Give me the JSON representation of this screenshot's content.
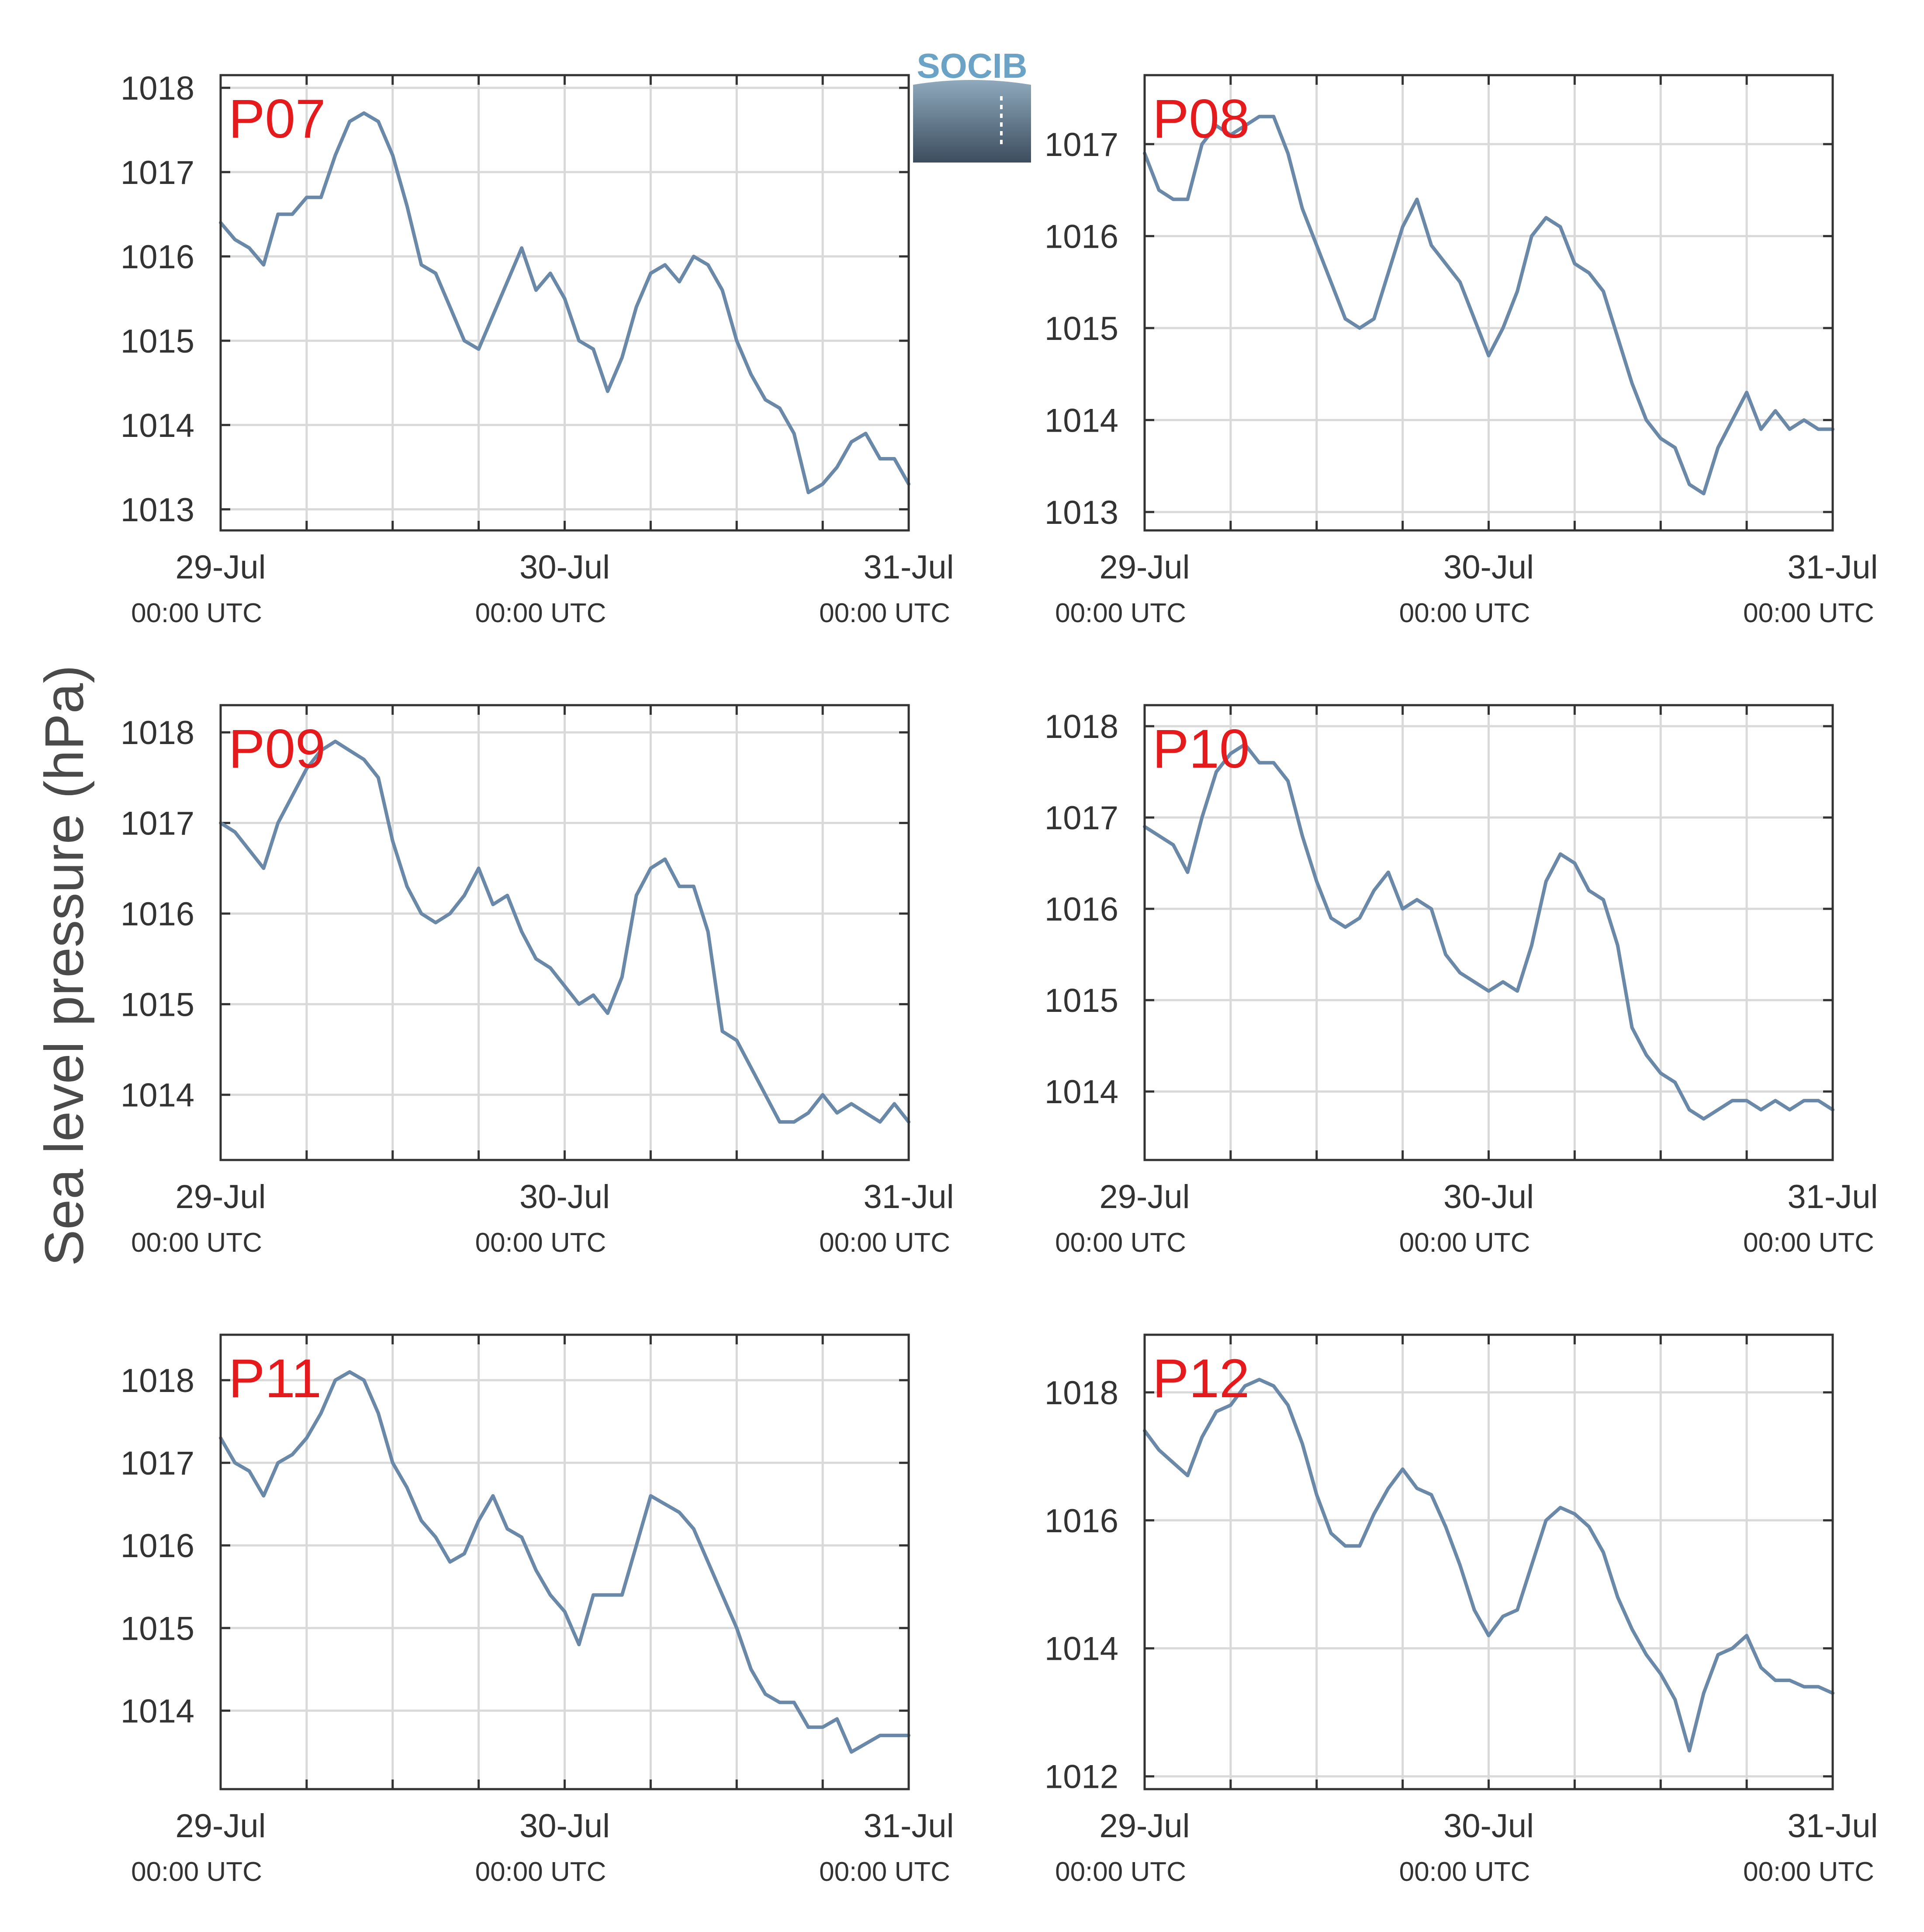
{
  "y_axis_title": "Sea level pressure (hPa)",
  "logo": {
    "text": "SOCIB",
    "name": "socib-logo"
  },
  "colors": {
    "series": "#6a88a8",
    "panel_label": "#e41a1c",
    "grid": "#d9d9d9",
    "axis": "#333333"
  },
  "x_ticks": [
    {
      "date": "29-Jul",
      "time": "00:00 UTC"
    },
    {
      "date": "30-Jul",
      "time": "00:00 UTC"
    },
    {
      "date": "31-Jul",
      "time": "00:00 UTC"
    }
  ],
  "chart_data": [
    {
      "type": "line",
      "panel_label": "P07",
      "xlim": [
        "2022-07-29T00:00",
        "2022-07-31T00:00"
      ],
      "ylim": [
        1012.75,
        1018.15
      ],
      "y_ticks": [
        1013,
        1014,
        1015,
        1016,
        1017,
        1018
      ],
      "series": [
        {
          "x_hours": [
            0,
            1,
            2,
            3,
            4,
            5,
            6,
            7,
            8,
            9,
            10,
            11,
            12,
            13,
            14,
            15,
            16,
            17,
            18,
            19,
            20,
            21,
            22,
            23,
            24,
            25,
            26,
            27,
            28,
            29,
            30,
            31,
            32,
            33,
            34,
            35,
            36,
            37,
            38,
            39,
            40,
            41,
            42,
            43,
            44,
            45,
            46,
            47,
            48
          ],
          "values": [
            1016.4,
            1016.2,
            1016.1,
            1015.9,
            1016.5,
            1016.5,
            1016.7,
            1016.7,
            1017.2,
            1017.6,
            1017.7,
            1017.6,
            1017.2,
            1016.6,
            1015.9,
            1015.8,
            1015.4,
            1015.0,
            1014.9,
            1015.3,
            1015.7,
            1016.1,
            1015.6,
            1015.8,
            1015.5,
            1015.0,
            1014.9,
            1014.4,
            1014.8,
            1015.4,
            1015.8,
            1015.9,
            1015.7,
            1016.0,
            1015.9,
            1015.6,
            1015.0,
            1014.6,
            1014.3,
            1014.2,
            1013.9,
            1013.2,
            1013.3,
            1013.5,
            1013.8,
            1013.9,
            1013.6,
            1013.6,
            1013.3
          ]
        }
      ]
    },
    {
      "type": "line",
      "panel_label": "P08",
      "xlim": [
        "2022-07-29T00:00",
        "2022-07-31T00:00"
      ],
      "ylim": [
        1012.8,
        1017.75
      ],
      "y_ticks": [
        1013,
        1014,
        1015,
        1016,
        1017
      ],
      "series": [
        {
          "x_hours": [
            0,
            1,
            2,
            3,
            4,
            5,
            6,
            7,
            8,
            9,
            10,
            11,
            12,
            13,
            14,
            15,
            16,
            17,
            18,
            19,
            20,
            21,
            22,
            23,
            24,
            25,
            26,
            27,
            28,
            29,
            30,
            31,
            32,
            33,
            34,
            35,
            36,
            37,
            38,
            39,
            40,
            41,
            42,
            43,
            44,
            45,
            46,
            47,
            48
          ],
          "values": [
            1016.9,
            1016.5,
            1016.4,
            1016.4,
            1017.0,
            1017.2,
            1017.1,
            1017.2,
            1017.3,
            1017.3,
            1016.9,
            1016.3,
            1015.9,
            1015.5,
            1015.1,
            1015.0,
            1015.1,
            1015.6,
            1016.1,
            1016.4,
            1015.9,
            1015.7,
            1015.5,
            1015.1,
            1014.7,
            1015.0,
            1015.4,
            1016.0,
            1016.2,
            1016.1,
            1015.7,
            1015.6,
            1015.4,
            1014.9,
            1014.4,
            1014.0,
            1013.8,
            1013.7,
            1013.3,
            1013.2,
            1013.7,
            1014.0,
            1014.3,
            1013.9,
            1014.1,
            1013.9,
            1014.0,
            1013.9,
            1013.9
          ]
        }
      ]
    },
    {
      "type": "line",
      "panel_label": "P09",
      "xlim": [
        "2022-07-29T00:00",
        "2022-07-31T00:00"
      ],
      "ylim": [
        1013.28,
        1018.3
      ],
      "y_ticks": [
        1014,
        1015,
        1016,
        1017,
        1018
      ],
      "series": [
        {
          "x_hours": [
            0,
            1,
            2,
            3,
            4,
            5,
            6,
            7,
            8,
            9,
            10,
            11,
            12,
            13,
            14,
            15,
            16,
            17,
            18,
            19,
            20,
            21,
            22,
            23,
            24,
            25,
            26,
            27,
            28,
            29,
            30,
            31,
            32,
            33,
            34,
            35,
            36,
            37,
            38,
            39,
            40,
            41,
            42,
            43,
            44,
            45,
            46,
            47,
            48
          ],
          "values": [
            1017.0,
            1016.9,
            1016.7,
            1016.5,
            1017.0,
            1017.3,
            1017.6,
            1017.8,
            1017.9,
            1017.8,
            1017.7,
            1017.5,
            1016.8,
            1016.3,
            1016.0,
            1015.9,
            1016.0,
            1016.2,
            1016.5,
            1016.1,
            1016.2,
            1015.8,
            1015.5,
            1015.4,
            1015.2,
            1015.0,
            1015.1,
            1014.9,
            1015.3,
            1016.2,
            1016.5,
            1016.6,
            1016.3,
            1016.3,
            1015.8,
            1014.7,
            1014.6,
            1014.3,
            1014.0,
            1013.7,
            1013.7,
            1013.8,
            1014.0,
            1013.8,
            1013.9,
            1013.8,
            1013.7,
            1013.9,
            1013.7
          ]
        }
      ]
    },
    {
      "type": "line",
      "panel_label": "P10",
      "xlim": [
        "2022-07-29T00:00",
        "2022-07-31T00:00"
      ],
      "ylim": [
        1013.25,
        1018.23
      ],
      "y_ticks": [
        1014,
        1015,
        1016,
        1017,
        1018
      ],
      "series": [
        {
          "x_hours": [
            0,
            1,
            2,
            3,
            4,
            5,
            6,
            7,
            8,
            9,
            10,
            11,
            12,
            13,
            14,
            15,
            16,
            17,
            18,
            19,
            20,
            21,
            22,
            23,
            24,
            25,
            26,
            27,
            28,
            29,
            30,
            31,
            32,
            33,
            34,
            35,
            36,
            37,
            38,
            39,
            40,
            41,
            42,
            43,
            44,
            45,
            46,
            47,
            48
          ],
          "values": [
            1016.9,
            1016.8,
            1016.7,
            1016.4,
            1017.0,
            1017.5,
            1017.7,
            1017.8,
            1017.6,
            1017.6,
            1017.4,
            1016.8,
            1016.3,
            1015.9,
            1015.8,
            1015.9,
            1016.2,
            1016.4,
            1016.0,
            1016.1,
            1016.0,
            1015.5,
            1015.3,
            1015.2,
            1015.1,
            1015.2,
            1015.1,
            1015.6,
            1016.3,
            1016.6,
            1016.5,
            1016.2,
            1016.1,
            1015.6,
            1014.7,
            1014.4,
            1014.2,
            1014.1,
            1013.8,
            1013.7,
            1013.8,
            1013.9,
            1013.9,
            1013.8,
            1013.9,
            1013.8,
            1013.9,
            1013.9,
            1013.8
          ]
        }
      ]
    },
    {
      "type": "line",
      "panel_label": "P11",
      "xlim": [
        "2022-07-29T00:00",
        "2022-07-31T00:00"
      ],
      "ylim": [
        1013.05,
        1018.55
      ],
      "y_ticks": [
        1014,
        1015,
        1016,
        1017,
        1018
      ],
      "series": [
        {
          "x_hours": [
            0,
            1,
            2,
            3,
            4,
            5,
            6,
            7,
            8,
            9,
            10,
            11,
            12,
            13,
            14,
            15,
            16,
            17,
            18,
            19,
            20,
            21,
            22,
            23,
            24,
            25,
            26,
            27,
            28,
            29,
            30,
            31,
            32,
            33,
            34,
            35,
            36,
            37,
            38,
            39,
            40,
            41,
            42,
            43,
            44,
            45,
            46,
            47,
            48
          ],
          "values": [
            1017.3,
            1017.0,
            1016.9,
            1016.6,
            1017.0,
            1017.1,
            1017.3,
            1017.6,
            1018.0,
            1018.1,
            1018.0,
            1017.6,
            1017.0,
            1016.7,
            1016.3,
            1016.1,
            1015.8,
            1015.9,
            1016.3,
            1016.6,
            1016.2,
            1016.1,
            1015.7,
            1015.4,
            1015.2,
            1014.8,
            1015.4,
            1015.4,
            1015.4,
            1016.0,
            1016.6,
            1016.5,
            1016.4,
            1016.2,
            1015.8,
            1015.4,
            1015.0,
            1014.5,
            1014.2,
            1014.1,
            1014.1,
            1013.8,
            1013.8,
            1013.9,
            1013.5,
            1013.6,
            1013.7,
            1013.7,
            1013.7
          ]
        }
      ]
    },
    {
      "type": "line",
      "panel_label": "P12",
      "xlim": [
        "2022-07-29T00:00",
        "2022-07-31T00:00"
      ],
      "ylim": [
        1011.8,
        1018.9
      ],
      "y_ticks": [
        1012,
        1014,
        1016,
        1018
      ],
      "series": [
        {
          "x_hours": [
            0,
            1,
            2,
            3,
            4,
            5,
            6,
            7,
            8,
            9,
            10,
            11,
            12,
            13,
            14,
            15,
            16,
            17,
            18,
            19,
            20,
            21,
            22,
            23,
            24,
            25,
            26,
            27,
            28,
            29,
            30,
            31,
            32,
            33,
            34,
            35,
            36,
            37,
            38,
            39,
            40,
            41,
            42,
            43,
            44,
            45,
            46,
            47,
            48
          ],
          "values": [
            1017.4,
            1017.1,
            1016.9,
            1016.7,
            1017.3,
            1017.7,
            1017.8,
            1018.1,
            1018.2,
            1018.1,
            1017.8,
            1017.2,
            1016.4,
            1015.8,
            1015.6,
            1015.6,
            1016.1,
            1016.5,
            1016.8,
            1016.5,
            1016.4,
            1015.9,
            1015.3,
            1014.6,
            1014.2,
            1014.5,
            1014.6,
            1015.3,
            1016.0,
            1016.2,
            1016.1,
            1015.9,
            1015.5,
            1014.8,
            1014.3,
            1013.9,
            1013.6,
            1013.2,
            1012.4,
            1013.3,
            1013.9,
            1014.0,
            1014.2,
            1013.7,
            1013.5,
            1013.5,
            1013.4,
            1013.4,
            1013.3
          ]
        }
      ]
    }
  ]
}
